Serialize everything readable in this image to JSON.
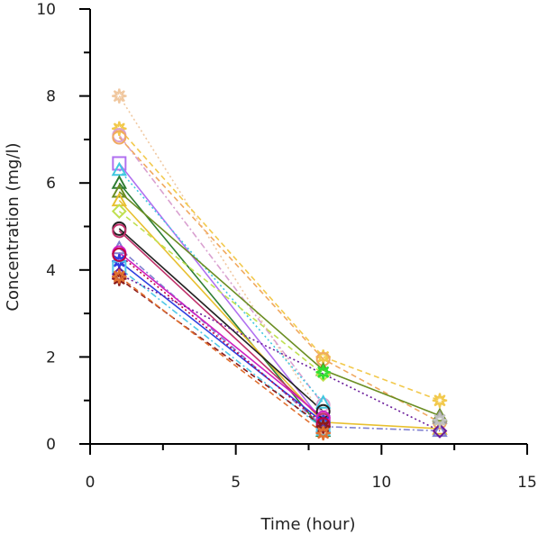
{
  "chart_data": {
    "type": "line",
    "xlabel": "Time  (hour)",
    "ylabel": "Concentration (mg/l)",
    "xlim": [
      0,
      15
    ],
    "ylim": [
      0,
      10
    ],
    "xticks": [
      "0",
      "5",
      "10",
      "15"
    ],
    "yticks": [
      "0",
      "2",
      "4",
      "6",
      "8",
      "10"
    ],
    "grid": false,
    "legend": "none",
    "series": [
      {
        "color": "#f0c8a0",
        "marker": "star",
        "dash": "dotted",
        "x": [
          1,
          8
        ],
        "y": [
          8.0,
          0.6
        ]
      },
      {
        "color": "#f2c94c",
        "marker": "star",
        "dash": "dashed",
        "x": [
          1,
          8,
          12
        ],
        "y": [
          7.25,
          2.0,
          1.0
        ]
      },
      {
        "color": "#d9a0d0",
        "marker": "circle",
        "dash": "dashdot",
        "x": [
          1,
          8
        ],
        "y": [
          7.1,
          0.9
        ]
      },
      {
        "color": "#f0a860",
        "marker": "circle",
        "dash": "dashed",
        "x": [
          1,
          8,
          12
        ],
        "y": [
          7.05,
          1.95,
          0.5
        ]
      },
      {
        "color": "#b070f0",
        "marker": "square",
        "dash": "solid",
        "x": [
          1,
          8
        ],
        "y": [
          6.45,
          0.5
        ]
      },
      {
        "color": "#40c8e0",
        "marker": "triangle",
        "dash": "dotted",
        "x": [
          1,
          8
        ],
        "y": [
          6.3,
          0.95
        ]
      },
      {
        "color": "#2e7d32",
        "marker": "triangle",
        "dash": "solid",
        "x": [
          1,
          8
        ],
        "y": [
          6.0,
          0.3
        ]
      },
      {
        "color": "#6b8e23",
        "marker": "triangle",
        "dash": "solid",
        "x": [
          1,
          8,
          12
        ],
        "y": [
          5.8,
          1.7,
          0.65
        ]
      },
      {
        "color": "#e8c030",
        "marker": "triangle",
        "dash": "solid",
        "x": [
          1,
          8,
          12
        ],
        "y": [
          5.6,
          0.5,
          0.35
        ]
      },
      {
        "color": "#c0e050",
        "marker": "diamond",
        "dash": "dashed",
        "x": [
          1,
          8
        ],
        "y": [
          5.35,
          1.6
        ]
      },
      {
        "color": "#222222",
        "marker": "circle",
        "dash": "solid",
        "x": [
          1,
          8
        ],
        "y": [
          4.95,
          0.75
        ]
      },
      {
        "color": "#c0306a",
        "marker": "circle",
        "dash": "solid",
        "x": [
          1,
          8
        ],
        "y": [
          4.9,
          0.55
        ]
      },
      {
        "color": "#8080d0",
        "marker": "triangle",
        "dash": "dashdot",
        "x": [
          1,
          8,
          12
        ],
        "y": [
          4.5,
          0.4,
          0.3
        ]
      },
      {
        "color": "#d020c0",
        "marker": "circle",
        "dash": "solid",
        "x": [
          1,
          8
        ],
        "y": [
          4.4,
          0.6
        ]
      },
      {
        "color": "#3040e0",
        "marker": "star",
        "dash": "solid",
        "x": [
          1,
          8
        ],
        "y": [
          4.2,
          0.5
        ]
      },
      {
        "color": "#50c8e8",
        "marker": "square",
        "dash": "dashdot",
        "x": [
          1,
          8
        ],
        "y": [
          4.05,
          0.35
        ]
      },
      {
        "color": "#c00040",
        "marker": "circle",
        "dash": "dotted",
        "x": [
          1,
          8
        ],
        "y": [
          4.35,
          0.45
        ]
      },
      {
        "color": "#6a1b9a",
        "marker": "diamond",
        "dash": "dotted",
        "x": [
          1,
          12
        ],
        "y": [
          3.9,
          0.3
        ]
      },
      {
        "color": "#8b1a1a",
        "marker": "star",
        "dash": "dashed",
        "x": [
          1,
          8
        ],
        "y": [
          3.8,
          0.4
        ]
      },
      {
        "color": "#e07030",
        "marker": "star",
        "dash": "dashed",
        "x": [
          1,
          8
        ],
        "y": [
          3.85,
          0.25
        ]
      },
      {
        "color": "#30e030",
        "marker": "star",
        "dash": "dotted",
        "x": [
          8
        ],
        "y": [
          1.65
        ]
      },
      {
        "color": "#9a9a9a",
        "marker": "triangle",
        "dash": "solid",
        "x": [
          12
        ],
        "y": [
          0.6
        ]
      },
      {
        "color": "#c0c0c0",
        "marker": "star",
        "dash": "solid",
        "x": [
          12
        ],
        "y": [
          0.55
        ]
      }
    ]
  }
}
